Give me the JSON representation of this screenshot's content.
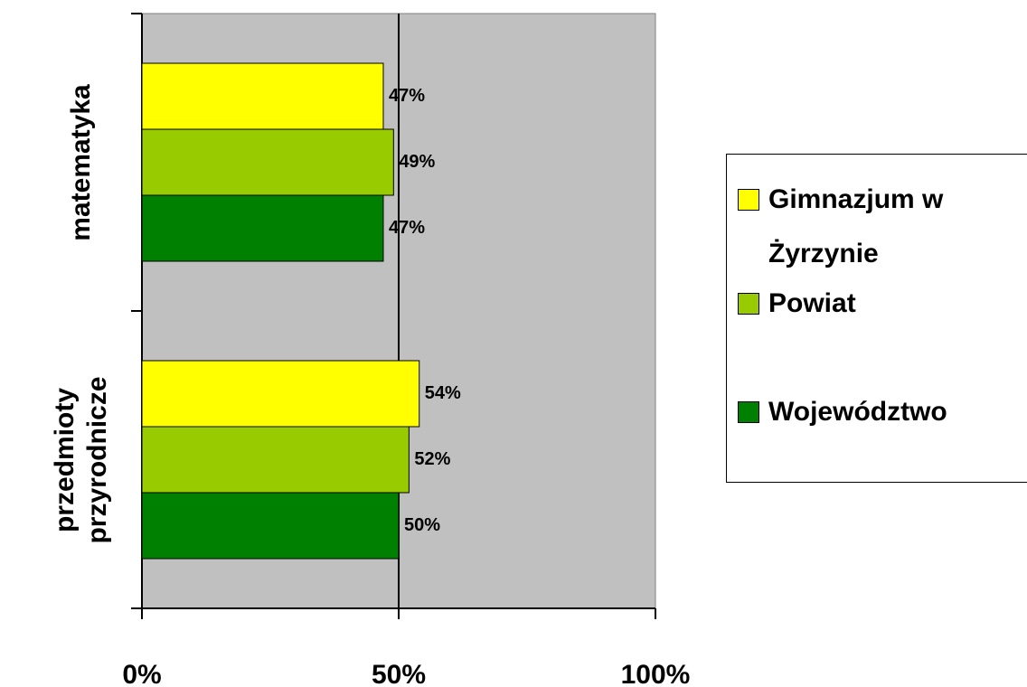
{
  "chart_data": {
    "type": "barh",
    "categories": [
      "matematyka",
      "przedmioty przyrodnicze"
    ],
    "series": [
      {
        "name": "Gimnazjum w Żyrzynie",
        "color": "#ffff00",
        "values": [
          47,
          54
        ],
        "value_labels": [
          "47%",
          "54%"
        ]
      },
      {
        "name": "Powiat",
        "color": "#99cc00",
        "values": [
          49,
          52
        ],
        "value_labels": [
          "49%",
          "52%"
        ]
      },
      {
        "name": "Województwo",
        "color": "#008000",
        "values": [
          47,
          50
        ],
        "value_labels": [
          "47%",
          "50%"
        ]
      }
    ],
    "xlim": [
      0,
      100
    ],
    "xticks": [
      {
        "value": 0,
        "label": "0%"
      },
      {
        "value": 50,
        "label": "50%"
      },
      {
        "value": 100,
        "label": "100%"
      }
    ],
    "grid": true,
    "plot_background": "#c0c0c0",
    "legend": "right"
  }
}
